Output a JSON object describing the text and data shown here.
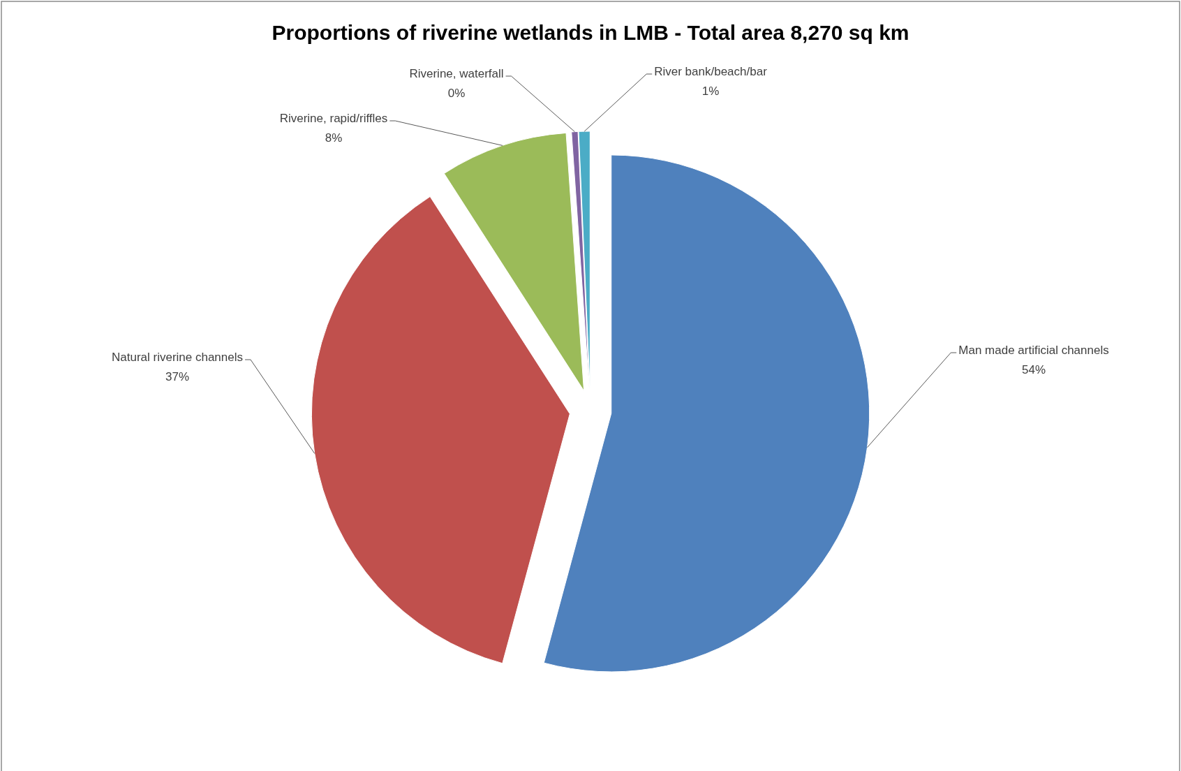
{
  "chart_data": {
    "type": "pie",
    "title": "Proportions of riverine wetlands in LMB - Total area 8,270 sq km",
    "categories": [
      "Man made artificial channels",
      "Natural riverine channels",
      "Riverine, rapid/riffles",
      "Riverine, waterfall",
      "River bank/beach/bar"
    ],
    "values": [
      54.2,
      36.7,
      8.0,
      0.4,
      0.7
    ],
    "colors": [
      "#4f81bd",
      "#c0504d",
      "#9bbb59",
      "#8064a2",
      "#4bacc6"
    ],
    "value_labels": [
      "54%",
      "37%",
      "8%",
      "0%",
      "1%"
    ]
  }
}
